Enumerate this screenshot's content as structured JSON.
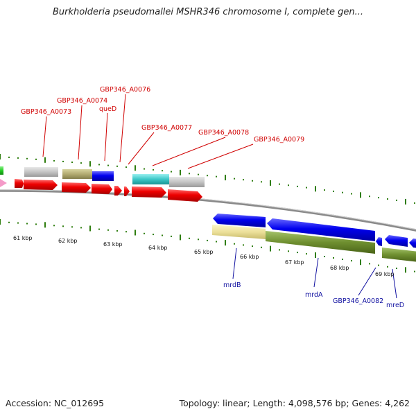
{
  "title": "Burkholderia pseudomallei MSHR346 chromosome I, complete gen...",
  "footer": {
    "accession": "Accession: NC_012695",
    "stats": "Topology: linear; Length: 4,098,576 bp; Genes: 4,262"
  },
  "top_gene_labels": [
    "GBP346_A0073",
    "GBP346_A0074",
    "queD",
    "GBP346_A0076",
    "GBP346_A0077",
    "GBP346_A0078",
    "GBP346_A0079"
  ],
  "bottom_gene_labels": [
    "mrdB",
    "mrdA",
    "GBP346_A0082",
    "mreD"
  ],
  "kbp_labels": [
    "61 kbp",
    "62 kbp",
    "63 kbp",
    "64 kbp",
    "65 kbp",
    "66 kbp",
    "67 kbp",
    "68 kbp",
    "69 kbp"
  ],
  "colors": {
    "top_label": "#d00000",
    "bottom_label": "#1010a0",
    "forward_gene": "#ee0000",
    "reverse_gene": "#0000ee",
    "backbone": "#808080",
    "tick": "#2e7d0e"
  }
}
